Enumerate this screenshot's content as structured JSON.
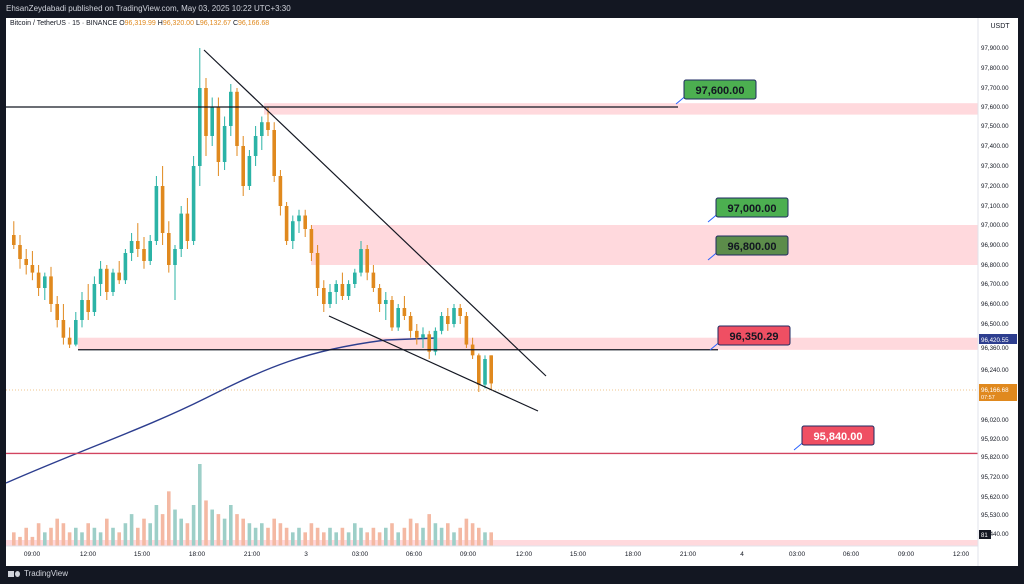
{
  "header": {
    "published_text": "EhsanZeydabadi published on TradingView.com, May 03, 2025 10:22 UTC+3:30"
  },
  "legend": {
    "symbol": "Bitcoin / TetherUS · 15 · BINANCE",
    "o_label": "O",
    "o_value": "96,319.99",
    "h_label": "H",
    "h_value": "96,320.00",
    "l_label": "L",
    "l_value": "96,132.67",
    "c_label": "C",
    "c_value": "96,166.68"
  },
  "footer": {
    "brand": "TradingView"
  },
  "colors": {
    "up": "#26a69a",
    "up_body": "#2bb3a6",
    "down": "#e0891e",
    "vol_up": "#9dcfc8",
    "vol_down": "#f4b9a3",
    "zone": "#ffd9dd",
    "ma": "#2d3e8f",
    "support_red": "#d24560",
    "label_green": "#4caf50",
    "label_red": "#ef4f63"
  },
  "chart_data": {
    "type": "candlestick",
    "currency_label": "USDT",
    "y_ticks": [
      "97,900.00",
      "97,800.00",
      "97,700.00",
      "97,600.00",
      "97,500.00",
      "97,400.00",
      "97,300.00",
      "97,200.00",
      "97,100.00",
      "97,000.00",
      "96,900.00",
      "96,800.00",
      "96,700.00",
      "96,600.00",
      "96,500.00",
      "96,360.00",
      "96,240.00",
      "96,120.00",
      "96,020.00",
      "95,920.00",
      "95,820.00",
      "95,720.00",
      "95,620.00",
      "95,530.00",
      "95,440.00"
    ],
    "x_ticks": [
      "09:00",
      "12:00",
      "15:00",
      "18:00",
      "21:00",
      "3",
      "03:00",
      "06:00",
      "09:00",
      "12:00",
      "15:00",
      "18:00",
      "21:00",
      "4",
      "03:00",
      "06:00",
      "09:00",
      "12:00"
    ],
    "current_price": {
      "label": "96,166.68",
      "countdown": "07:57"
    },
    "ma_value_label": "96,420.55",
    "volume_label": "81",
    "levels": [
      {
        "label": "97,600.00",
        "value": 97600,
        "style": "green"
      },
      {
        "label": "97,000.00",
        "value": 97000,
        "style": "green"
      },
      {
        "label": "96,800.00",
        "value": 96800,
        "style": "green-dark"
      },
      {
        "label": "96,350.29",
        "value": 96350.29,
        "style": "red"
      },
      {
        "label": "95,840.00",
        "value": 95840,
        "style": "red"
      }
    ],
    "candles": [
      [
        96950,
        97020,
        96880,
        96900
      ],
      [
        96900,
        96950,
        96780,
        96830
      ],
      [
        96830,
        96880,
        96750,
        96800
      ],
      [
        96800,
        96870,
        96720,
        96760
      ],
      [
        96760,
        96800,
        96640,
        96680
      ],
      [
        96680,
        96760,
        96620,
        96740
      ],
      [
        96740,
        96790,
        96560,
        96600
      ],
      [
        96600,
        96640,
        96480,
        96520
      ],
      [
        96520,
        96600,
        96380,
        96420
      ],
      [
        96420,
        96480,
        96360,
        96380
      ],
      [
        96380,
        96560,
        96370,
        96520
      ],
      [
        96520,
        96660,
        96480,
        96620
      ],
      [
        96620,
        96700,
        96520,
        96560
      ],
      [
        96560,
        96740,
        96540,
        96700
      ],
      [
        96700,
        96820,
        96640,
        96780
      ],
      [
        96780,
        96800,
        96620,
        96660
      ],
      [
        96660,
        96780,
        96640,
        96760
      ],
      [
        96760,
        96820,
        96700,
        96720
      ],
      [
        96720,
        96880,
        96700,
        96860
      ],
      [
        96860,
        96960,
        96820,
        96920
      ],
      [
        96920,
        97010,
        96840,
        96880
      ],
      [
        96880,
        96940,
        96780,
        96820
      ],
      [
        96820,
        96950,
        96800,
        96920
      ],
      [
        96920,
        97250,
        96900,
        97200
      ],
      [
        97200,
        97300,
        96900,
        96960
      ],
      [
        96960,
        97020,
        96760,
        96800
      ],
      [
        96800,
        96900,
        96620,
        96880
      ],
      [
        96880,
        97100,
        96840,
        97060
      ],
      [
        97060,
        97140,
        96880,
        96920
      ],
      [
        96920,
        97350,
        96900,
        97300
      ],
      [
        97300,
        97900,
        97200,
        97700
      ],
      [
        97700,
        97750,
        97350,
        97450
      ],
      [
        97450,
        97650,
        97400,
        97600
      ],
      [
        97600,
        97650,
        97250,
        97320
      ],
      [
        97320,
        97550,
        97280,
        97500
      ],
      [
        97500,
        97720,
        97450,
        97680
      ],
      [
        97680,
        97700,
        97350,
        97400
      ],
      [
        97400,
        97450,
        97150,
        97200
      ],
      [
        97200,
        97380,
        97180,
        97350
      ],
      [
        97350,
        97500,
        97300,
        97450
      ],
      [
        97450,
        97550,
        97380,
        97520
      ],
      [
        97520,
        97600,
        97450,
        97480
      ],
      [
        97480,
        97520,
        97220,
        97250
      ],
      [
        97250,
        97280,
        97050,
        97100
      ],
      [
        97100,
        97120,
        96900,
        96920
      ],
      [
        96920,
        97050,
        96880,
        97020
      ],
      [
        97020,
        97080,
        96960,
        97050
      ],
      [
        97050,
        97080,
        96940,
        96980
      ],
      [
        96980,
        97000,
        96820,
        96860
      ],
      [
        96860,
        96900,
        96640,
        96680
      ],
      [
        96680,
        96720,
        96560,
        96600
      ],
      [
        96600,
        96700,
        96580,
        96660
      ],
      [
        96660,
        96720,
        96600,
        96700
      ],
      [
        96700,
        96760,
        96620,
        96640
      ],
      [
        96640,
        96720,
        96620,
        96700
      ],
      [
        96700,
        96780,
        96680,
        96760
      ],
      [
        96760,
        96920,
        96740,
        96880
      ],
      [
        96880,
        96900,
        96720,
        96760
      ],
      [
        96760,
        96800,
        96660,
        96680
      ],
      [
        96680,
        96700,
        96560,
        96600
      ],
      [
        96600,
        96660,
        96520,
        96620
      ],
      [
        96620,
        96640,
        96460,
        96480
      ],
      [
        96480,
        96600,
        96460,
        96580
      ],
      [
        96580,
        96640,
        96520,
        96540
      ],
      [
        96540,
        96560,
        96420,
        96460
      ],
      [
        96460,
        96500,
        96380,
        96420
      ],
      [
        96420,
        96480,
        96360,
        96440
      ],
      [
        96440,
        96460,
        96300,
        96340
      ],
      [
        96340,
        96480,
        96320,
        96460
      ],
      [
        96460,
        96560,
        96440,
        96540
      ],
      [
        96540,
        96580,
        96460,
        96500
      ],
      [
        96500,
        96600,
        96480,
        96580
      ],
      [
        96580,
        96600,
        96500,
        96540
      ],
      [
        96540,
        96560,
        96360,
        96380
      ],
      [
        96380,
        96420,
        96300,
        96320
      ],
      [
        96320,
        96330,
        96120,
        96160
      ],
      [
        96160,
        96320,
        96140,
        96300
      ],
      [
        96319.99,
        96320,
        96132.67,
        96166.68
      ]
    ],
    "volumes": [
      3,
      2,
      4,
      2,
      5,
      3,
      4,
      6,
      5,
      3,
      4,
      3,
      5,
      4,
      3,
      6,
      4,
      3,
      5,
      7,
      4,
      6,
      5,
      9,
      7,
      12,
      8,
      6,
      5,
      9,
      18,
      10,
      8,
      7,
      6,
      9,
      7,
      6,
      5,
      4,
      5,
      4,
      6,
      5,
      4,
      3,
      4,
      3,
      5,
      4,
      3,
      4,
      3,
      4,
      3,
      5,
      4,
      3,
      4,
      3,
      4,
      5,
      3,
      4,
      6,
      5,
      4,
      7,
      5,
      4,
      5,
      3,
      4,
      6,
      5,
      4,
      3,
      3
    ]
  }
}
